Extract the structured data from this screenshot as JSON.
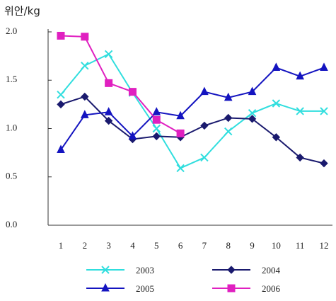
{
  "chart_data": {
    "type": "line",
    "y_label": "위안/kg",
    "categories": [
      "1",
      "2",
      "3",
      "4",
      "5",
      "6",
      "7",
      "8",
      "9",
      "10",
      "11",
      "12"
    ],
    "ylim": [
      0,
      2
    ],
    "yticks": [
      {
        "value": 0,
        "label": "0.0"
      },
      {
        "value": 0.5,
        "label": "0.5"
      },
      {
        "value": 1,
        "label": "1.0"
      },
      {
        "value": 1.5,
        "label": "1.5"
      },
      {
        "value": 2,
        "label": "2.0"
      }
    ],
    "legend": "bottom",
    "series": [
      {
        "name": "2003",
        "color": "#30dede",
        "marker": "x",
        "values": [
          1.35,
          1.65,
          1.77,
          1.37,
          1.0,
          0.59,
          0.7,
          0.97,
          1.16,
          1.26,
          1.18,
          1.18
        ]
      },
      {
        "name": "2004",
        "color": "#1a1a6e",
        "marker": "diamond",
        "values": [
          1.25,
          1.33,
          1.08,
          0.89,
          0.92,
          0.91,
          1.03,
          1.11,
          1.1,
          0.91,
          0.7,
          0.64
        ]
      },
      {
        "name": "2005",
        "color": "#1414c0",
        "marker": "triangle",
        "values": [
          0.78,
          1.14,
          1.17,
          0.92,
          1.17,
          1.13,
          1.38,
          1.32,
          1.38,
          1.63,
          1.54,
          1.63
        ]
      },
      {
        "name": "2006",
        "color": "#e020c0",
        "marker": "square",
        "values": [
          1.96,
          1.95,
          1.47,
          1.38,
          1.09,
          0.95,
          null,
          null,
          null,
          null,
          null,
          null
        ]
      }
    ]
  }
}
